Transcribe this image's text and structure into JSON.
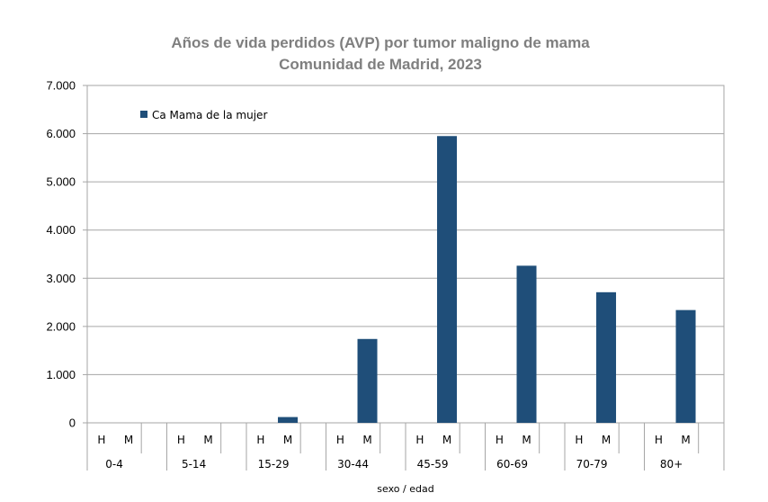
{
  "chart_data": {
    "type": "bar",
    "title_line1": "Años de vida perdidos (AVP) por tumor maligno de mama",
    "title_line2": "Comunidad de Madrid, 2023",
    "xlabel": "sexo / edad",
    "ylabel": "",
    "ylim": [
      0,
      7000
    ],
    "y_ticks": [
      0,
      1000,
      2000,
      3000,
      4000,
      5000,
      6000,
      7000
    ],
    "y_tick_labels": [
      "0",
      "1.000",
      "2.000",
      "3.000",
      "4.000",
      "5.000",
      "6.000",
      "7.000"
    ],
    "grid": true,
    "legend_position": "top-left",
    "sex_labels": [
      "H",
      "M"
    ],
    "categories": [
      "0-4",
      "5-14",
      "15-29",
      "30-44",
      "45-59",
      "60-69",
      "70-79",
      "80+"
    ],
    "series": [
      {
        "name": "Ca Mama de la mujer",
        "color": "#1f4e79",
        "values_H": [
          0,
          0,
          0,
          0,
          0,
          0,
          0,
          0
        ],
        "values_M": [
          0,
          0,
          120,
          1740,
          5950,
          3260,
          2710,
          2340
        ]
      }
    ]
  }
}
